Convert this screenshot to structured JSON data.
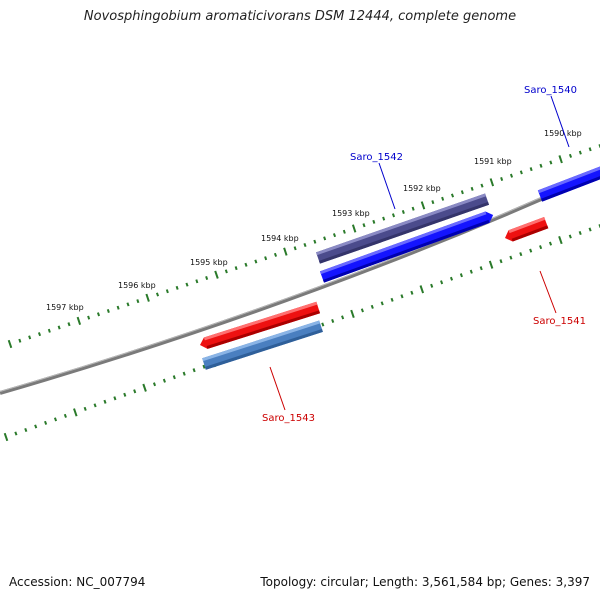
{
  "title": "Novosphingobium aromaticivorans DSM 12444, complete genome",
  "footer": {
    "accession": "Accession: NC_007794",
    "info": "Topology: circular; Length: 3,561,584 bp; Genes: 3,397"
  },
  "colors": {
    "forward_gene": "#0000ff",
    "reverse_gene": "#ff0000",
    "forward_label": "#0000cc",
    "reverse_label": "#cc0000",
    "tick": "#2a7a2a",
    "backbone": "#808080",
    "feature_purple": "#4b4b8c",
    "feature_steelblue": "#4a7fc0"
  },
  "scale_labels": [
    "1590 kbp",
    "1591 kbp",
    "1592 kbp",
    "1593 kbp",
    "1594 kbp",
    "1595 kbp",
    "1596 kbp",
    "1597 kbp"
  ],
  "genes": [
    {
      "label": "Saro_1540",
      "strand": "forward"
    },
    {
      "label": "Saro_1541",
      "strand": "reverse"
    },
    {
      "label": "Saro_1542",
      "strand": "forward"
    },
    {
      "label": "Saro_1543",
      "strand": "reverse"
    }
  ]
}
